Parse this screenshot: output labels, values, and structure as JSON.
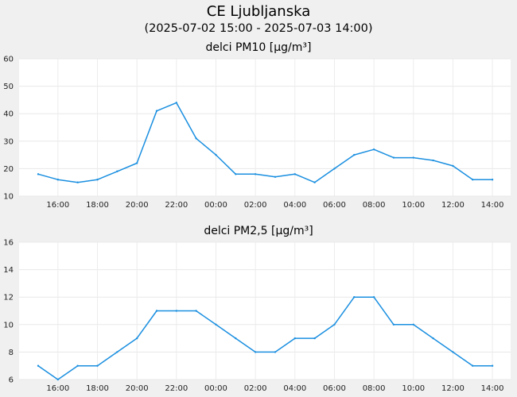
{
  "chart_data": [
    {
      "type": "line",
      "title": "delci PM10 [µg/m³]",
      "ylim": [
        10,
        60
      ],
      "yticks": [
        10,
        20,
        30,
        40,
        50,
        60
      ],
      "x_tick_labels": [
        "16:00",
        "18:00",
        "20:00",
        "22:00",
        "00:00",
        "02:00",
        "04:00",
        "06:00",
        "08:00",
        "10:00",
        "12:00",
        "14:00"
      ],
      "x": [
        "2025-07-02 15:00",
        "2025-07-02 16:00",
        "2025-07-02 17:00",
        "2025-07-02 18:00",
        "2025-07-02 19:00",
        "2025-07-02 20:00",
        "2025-07-02 21:00",
        "2025-07-02 22:00",
        "2025-07-02 23:00",
        "2025-07-03 00:00",
        "2025-07-03 01:00",
        "2025-07-03 02:00",
        "2025-07-03 03:00",
        "2025-07-03 04:00",
        "2025-07-03 05:00",
        "2025-07-03 06:00",
        "2025-07-03 07:00",
        "2025-07-03 08:00",
        "2025-07-03 09:00",
        "2025-07-03 10:00",
        "2025-07-03 11:00",
        "2025-07-03 12:00",
        "2025-07-03 13:00",
        "2025-07-03 14:00"
      ],
      "values": [
        18,
        16,
        15,
        16,
        19,
        22,
        41,
        44,
        31,
        25,
        18,
        18,
        17,
        18,
        15,
        20,
        25,
        27,
        24,
        24,
        23,
        21,
        16,
        16
      ],
      "color": "#1a8fe0",
      "grid": true
    },
    {
      "type": "line",
      "title": "delci PM2,5 [µg/m³]",
      "ylim": [
        6,
        16
      ],
      "yticks": [
        6,
        8,
        10,
        12,
        14,
        16
      ],
      "x_tick_labels": [
        "16:00",
        "18:00",
        "20:00",
        "22:00",
        "00:00",
        "02:00",
        "04:00",
        "06:00",
        "08:00",
        "10:00",
        "12:00",
        "14:00"
      ],
      "x": [
        "2025-07-02 15:00",
        "2025-07-02 16:00",
        "2025-07-02 17:00",
        "2025-07-02 18:00",
        "2025-07-02 19:00",
        "2025-07-02 20:00",
        "2025-07-02 21:00",
        "2025-07-02 22:00",
        "2025-07-02 23:00",
        "2025-07-03 00:00",
        "2025-07-03 01:00",
        "2025-07-03 02:00",
        "2025-07-03 03:00",
        "2025-07-03 04:00",
        "2025-07-03 05:00",
        "2025-07-03 06:00",
        "2025-07-03 07:00",
        "2025-07-03 08:00",
        "2025-07-03 09:00",
        "2025-07-03 10:00",
        "2025-07-03 11:00",
        "2025-07-03 12:00",
        "2025-07-03 13:00",
        "2025-07-03 14:00"
      ],
      "values": [
        7,
        6,
        7,
        7,
        8,
        9,
        11,
        11,
        11,
        10,
        9,
        8,
        8,
        9,
        9,
        10,
        12,
        12,
        10,
        10,
        9,
        8,
        7,
        7
      ],
      "color": "#1a8fe0",
      "grid": true
    }
  ],
  "header": {
    "title": "CE Ljubljanska",
    "subtitle": "(2025-07-02 15:00 - 2025-07-03 14:00)"
  }
}
